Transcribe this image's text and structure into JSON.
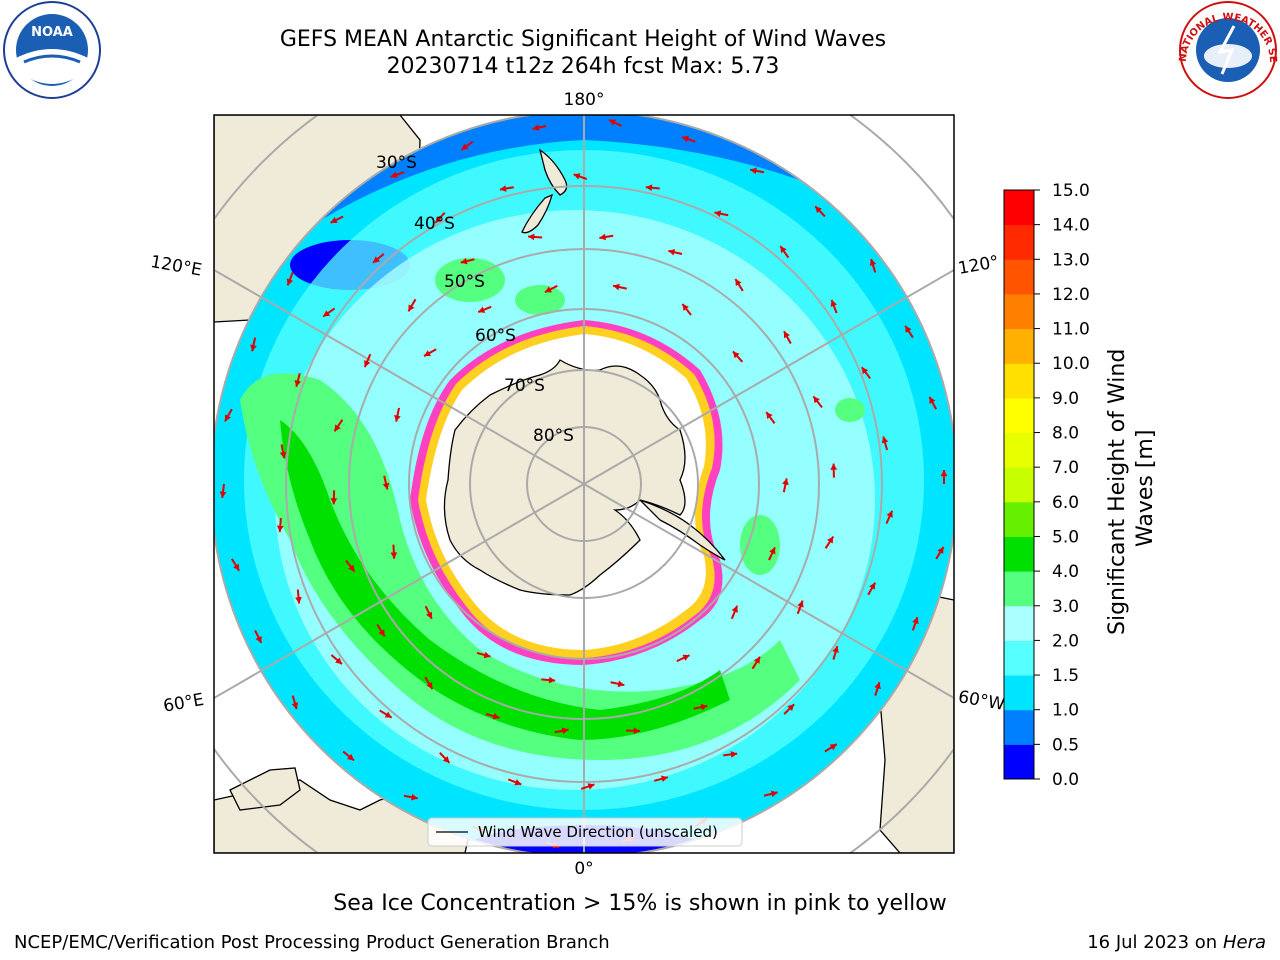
{
  "title": {
    "line1": "GEFS MEAN Antarctic Significant Height of Wind Waves",
    "line2": "20230714 t12z 264h fcst   Max: 5.73"
  },
  "map": {
    "projection": "south-polar-stereographic",
    "meridian_labels": {
      "top": "180°",
      "bottom": "0°",
      "left_upper": "120°E",
      "left_lower": "60°E",
      "right_upper": "120°",
      "right_lower": "60°W"
    },
    "parallel_labels": [
      "30°S",
      "40°S",
      "50°S",
      "60°S",
      "70°S",
      "80°S"
    ],
    "legend_label": "Wind Wave Direction (unscaled)",
    "arrow_color": "#e00000",
    "land_color": "#efebd8",
    "ice_color": "#ffffff"
  },
  "colorbar": {
    "label": "Significant Height of Wind Waves [m]",
    "label_line1": "Significant Height of Wind",
    "label_line2": "Waves [m]",
    "ticks": [
      "0.0",
      "0.5",
      "1.0",
      "1.5",
      "2.0",
      "3.0",
      "4.0",
      "5.0",
      "6.0",
      "7.0",
      "8.0",
      "9.0",
      "10.0",
      "11.0",
      "12.0",
      "13.0",
      "14.0",
      "15.0"
    ],
    "colors": [
      "#0000ff",
      "#0080ff",
      "#00e5ff",
      "#55ffff",
      "#aaffff",
      "#55ff80",
      "#00e000",
      "#66f000",
      "#c8ff00",
      "#e8ff00",
      "#ffff00",
      "#ffe000",
      "#ffb000",
      "#ff8000",
      "#ff5500",
      "#ff2a00",
      "#ff0000"
    ]
  },
  "subtitle": "Sea Ice Concentration > 15% is shown in pink to yellow",
  "footer": {
    "left": "NCEP/EMC/Verification Post Processing Product Generation Branch",
    "right_date": "16 Jul 2023 on",
    "right_host": "Hera"
  },
  "logos": {
    "left_text": "NOAA",
    "right_text": "NATIONAL WEATHER SERVICE"
  }
}
